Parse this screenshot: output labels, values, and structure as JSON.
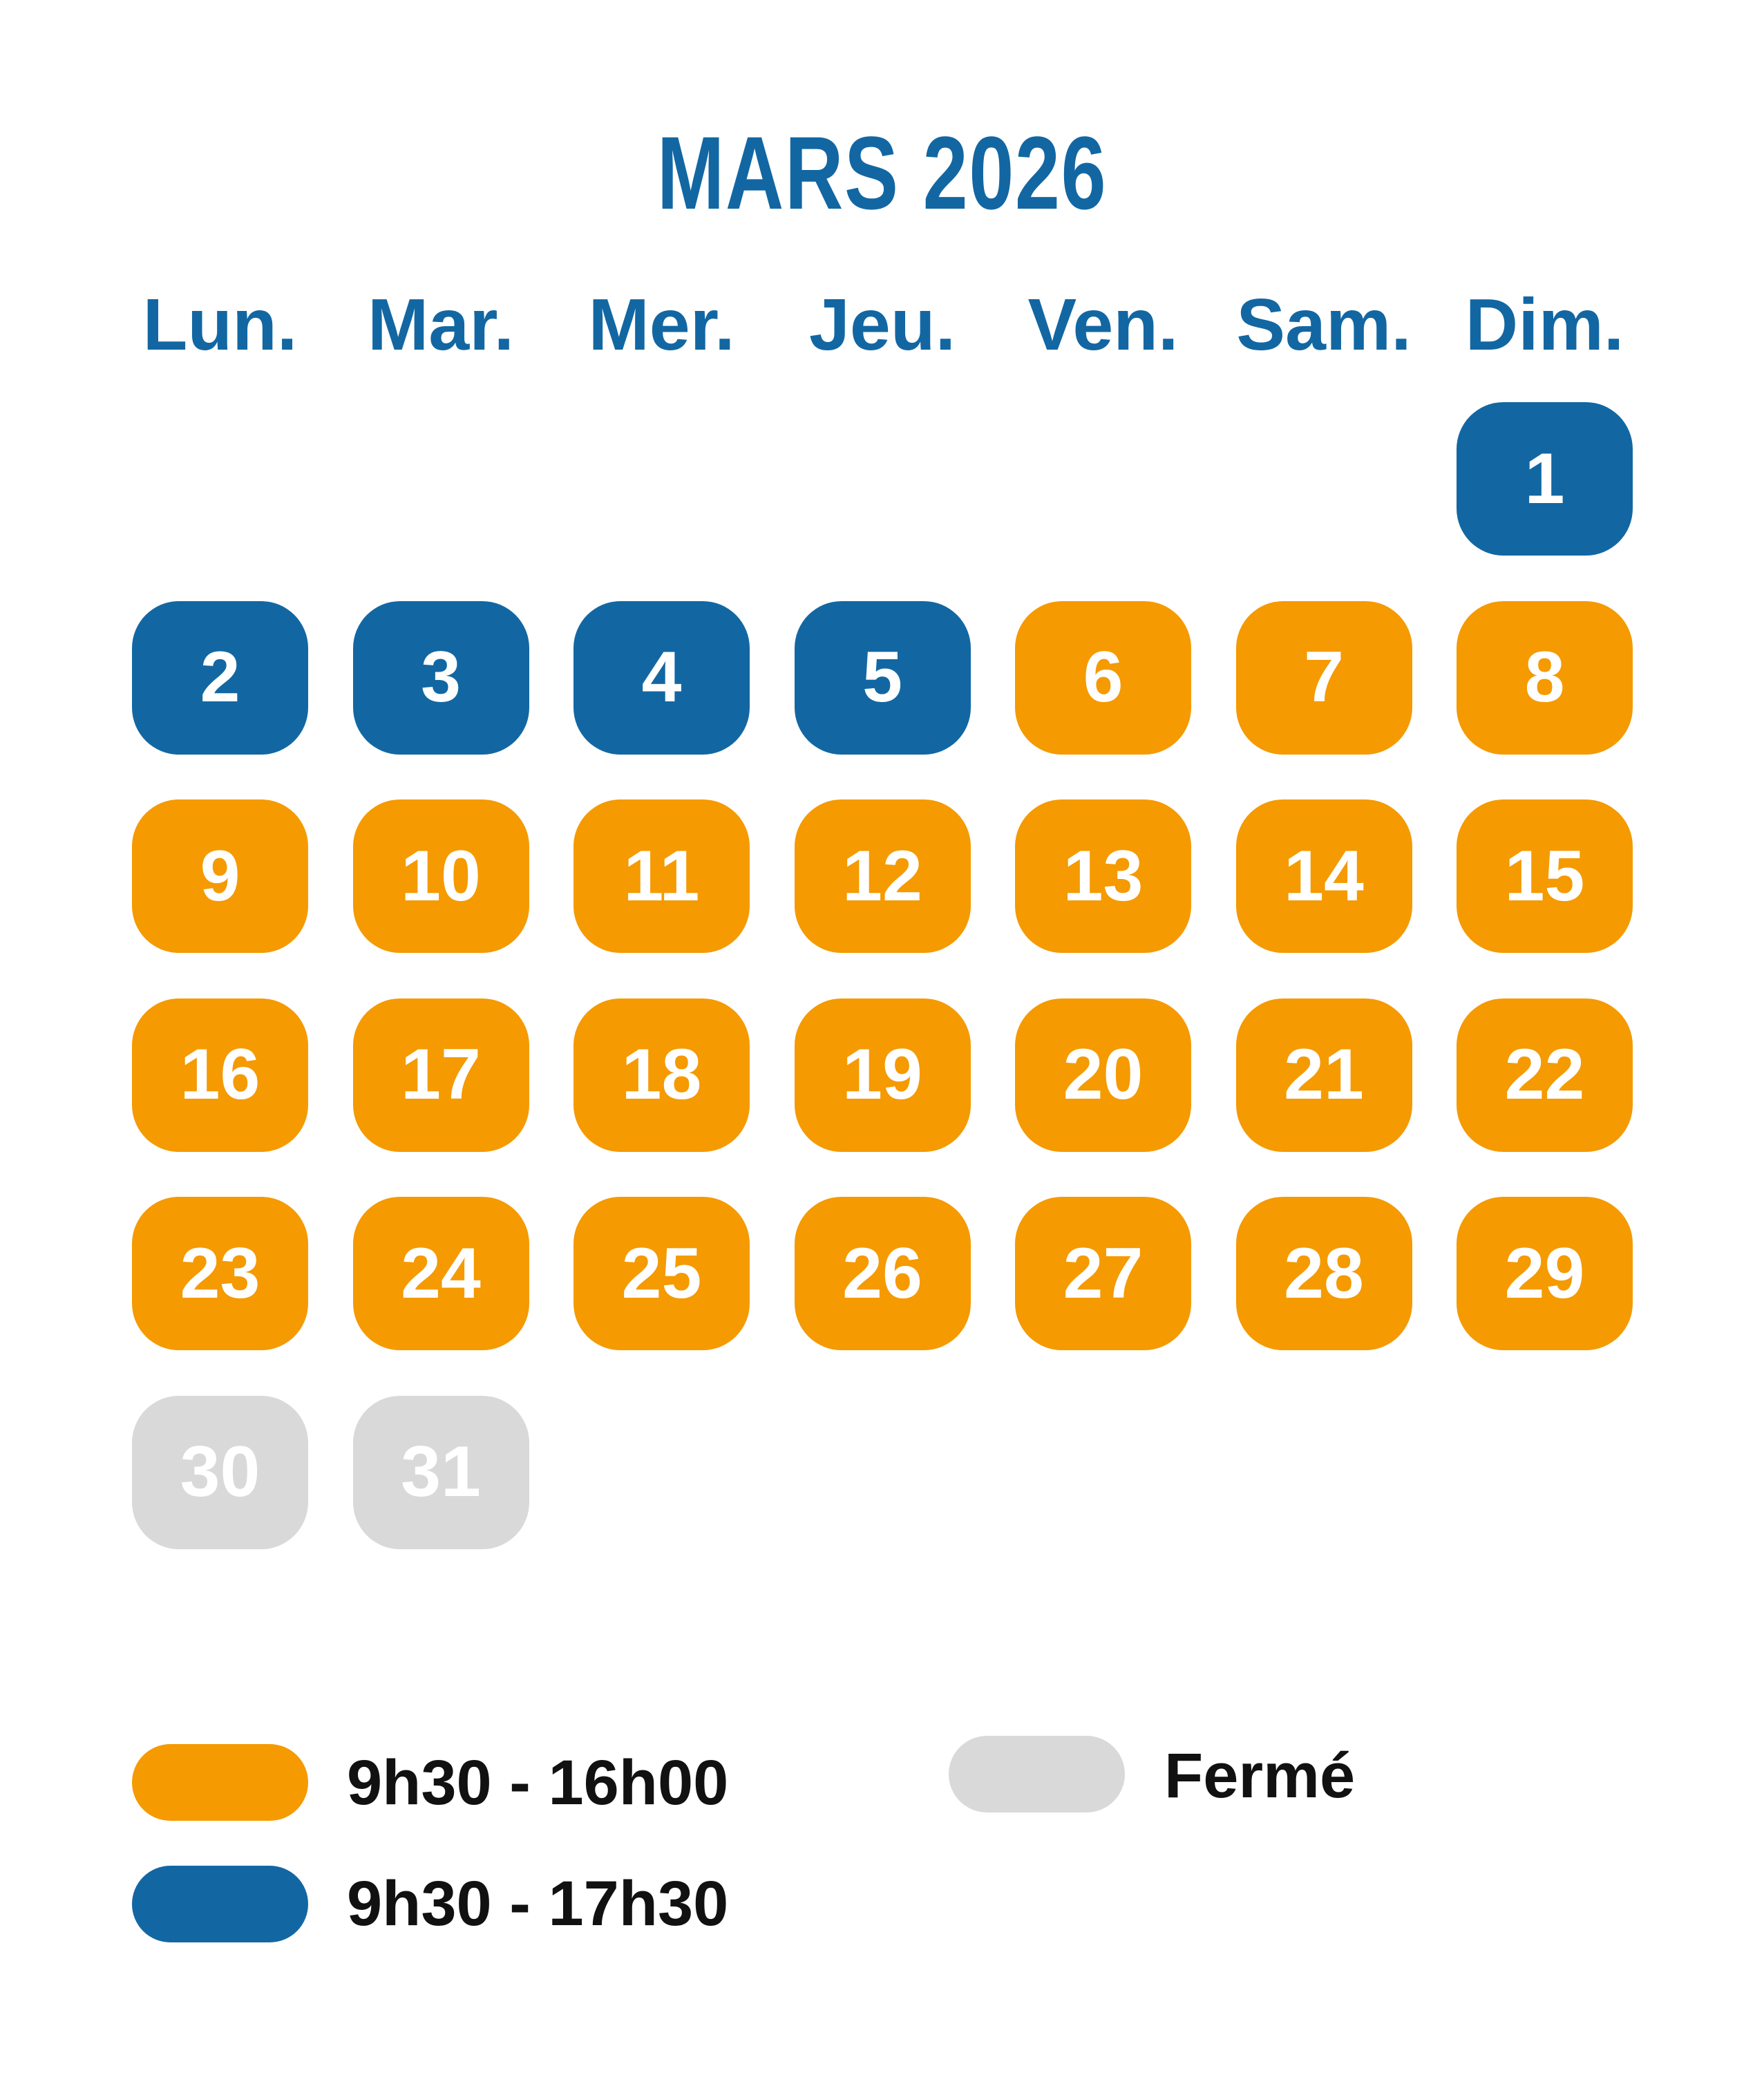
{
  "title": "MARS 2026",
  "colors": {
    "open_short": "#f59a00",
    "open_long": "#1267a3",
    "closed": "#d9d9d9",
    "text": "#1267a3"
  },
  "weekdays": [
    "Lun.",
    "Mar.",
    "Mer.",
    "Jeu.",
    "Ven.",
    "Sam.",
    "Dim."
  ],
  "first_weekday_index": 6,
  "days": [
    {
      "n": "1",
      "s": "open_long"
    },
    {
      "n": "2",
      "s": "open_long"
    },
    {
      "n": "3",
      "s": "open_long"
    },
    {
      "n": "4",
      "s": "open_long"
    },
    {
      "n": "5",
      "s": "open_long"
    },
    {
      "n": "6",
      "s": "open_short"
    },
    {
      "n": "7",
      "s": "open_short"
    },
    {
      "n": "8",
      "s": "open_short"
    },
    {
      "n": "9",
      "s": "open_short"
    },
    {
      "n": "10",
      "s": "open_short"
    },
    {
      "n": "11",
      "s": "open_short"
    },
    {
      "n": "12",
      "s": "open_short"
    },
    {
      "n": "13",
      "s": "open_short"
    },
    {
      "n": "14",
      "s": "open_short"
    },
    {
      "n": "15",
      "s": "open_short"
    },
    {
      "n": "16",
      "s": "open_short"
    },
    {
      "n": "17",
      "s": "open_short"
    },
    {
      "n": "18",
      "s": "open_short"
    },
    {
      "n": "19",
      "s": "open_short"
    },
    {
      "n": "20",
      "s": "open_short"
    },
    {
      "n": "21",
      "s": "open_short"
    },
    {
      "n": "22",
      "s": "open_short"
    },
    {
      "n": "23",
      "s": "open_short"
    },
    {
      "n": "24",
      "s": "open_short"
    },
    {
      "n": "25",
      "s": "open_short"
    },
    {
      "n": "26",
      "s": "open_short"
    },
    {
      "n": "27",
      "s": "open_short"
    },
    {
      "n": "28",
      "s": "open_short"
    },
    {
      "n": "29",
      "s": "open_short"
    },
    {
      "n": "30",
      "s": "closed"
    },
    {
      "n": "31",
      "s": "closed"
    }
  ],
  "legend": {
    "open_short": "9h30 - 16h00",
    "open_long": "9h30 - 17h30",
    "closed": "Fermé"
  }
}
